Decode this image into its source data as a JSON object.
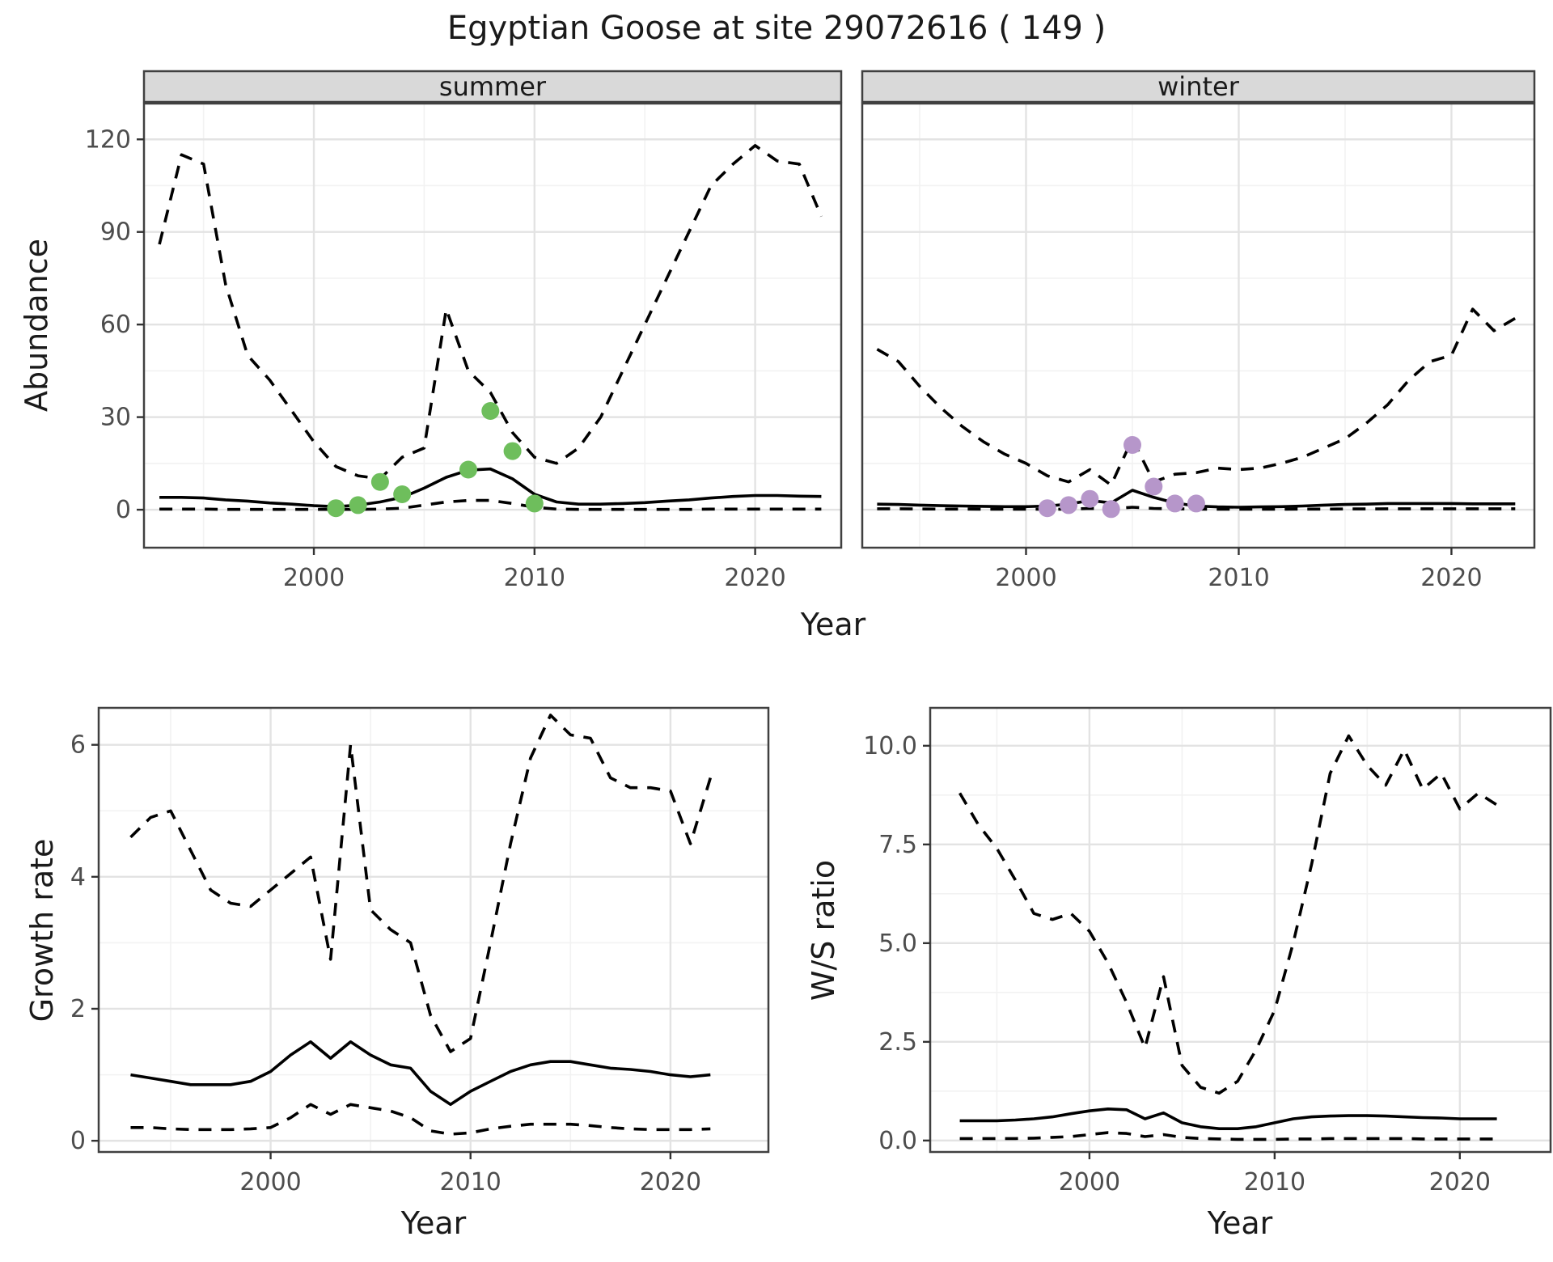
{
  "title": "Egyptian Goose at site 29072616 ( 149 )",
  "colors": {
    "line": "#000000",
    "grid_major": "#e3e3e3",
    "grid_minor": "#f2f2f2",
    "panel_border": "#404040",
    "strip_bg": "#d9d9d9",
    "tick_text": "#4d4d4d",
    "summer_point": "#6ebe5c",
    "winter_point": "#b696ca"
  },
  "chart_data": [
    {
      "id": "abundance_summer",
      "type": "line",
      "facet": "summer",
      "xlabel": "Year",
      "ylabel": "Abundance",
      "legend_position": "none",
      "grid": "on",
      "x": [
        1993,
        1994,
        1995,
        1996,
        1997,
        1998,
        1999,
        2000,
        2001,
        2002,
        2003,
        2004,
        2005,
        2006,
        2007,
        2008,
        2009,
        2010,
        2011,
        2012,
        2013,
        2014,
        2015,
        2016,
        2017,
        2018,
        2019,
        2020,
        2021,
        2022,
        2023
      ],
      "series": [
        {
          "name": "upper_ci",
          "style": "dashed",
          "values": [
            86,
            115,
            112,
            73,
            50,
            42,
            32,
            22,
            14,
            11,
            10,
            17,
            20,
            65,
            45,
            38,
            25,
            17,
            15,
            20,
            30,
            45,
            60,
            75,
            90,
            105,
            112,
            118,
            113,
            112,
            95
          ]
        },
        {
          "name": "mean",
          "style": "solid",
          "values": [
            4,
            4,
            3.8,
            3.2,
            2.8,
            2.2,
            1.8,
            1.3,
            1,
            1.5,
            2.5,
            4,
            7,
            10.5,
            12.8,
            13.2,
            10,
            5,
            2.5,
            1.8,
            1.8,
            2,
            2.3,
            2.8,
            3.2,
            3.8,
            4.3,
            4.6,
            4.6,
            4.4,
            4.3
          ]
        },
        {
          "name": "lower_ci",
          "style": "dashed",
          "values": [
            0.2,
            0.2,
            0.2,
            0.1,
            0.1,
            0.1,
            0.1,
            0.1,
            0.1,
            0.1,
            0.2,
            0.5,
            1.5,
            2.5,
            3,
            3,
            2,
            0.8,
            0.2,
            0.1,
            0.1,
            0.1,
            0.1,
            0.1,
            0.1,
            0.2,
            0.2,
            0.2,
            0.2,
            0.2,
            0.2
          ]
        }
      ],
      "points": {
        "name": "observed_counts",
        "color": "#6ebe5c",
        "data": [
          [
            2001,
            0.5
          ],
          [
            2002,
            1.5
          ],
          [
            2003,
            9
          ],
          [
            2004,
            5
          ],
          [
            2007,
            13
          ],
          [
            2008,
            32
          ],
          [
            2009,
            19
          ],
          [
            2010,
            2
          ]
        ]
      },
      "xticks": [
        2000,
        2010,
        2020
      ],
      "xminor": [
        1995,
        2005,
        2015
      ],
      "yticks": [
        0,
        30,
        60,
        90,
        120
      ],
      "yminor": [
        15,
        45,
        75,
        105
      ],
      "ytick_labels": [
        "0",
        "30",
        "60",
        "90",
        "120"
      ],
      "xlim": [
        1992.3,
        2023.9
      ],
      "ylim": [
        -12.3,
        131.6
      ]
    },
    {
      "id": "abundance_winter",
      "type": "line",
      "facet": "winter",
      "xlabel": "Year",
      "ylabel": "Abundance",
      "legend_position": "none",
      "grid": "on",
      "x": [
        1993,
        1994,
        1995,
        1996,
        1997,
        1998,
        1999,
        2000,
        2001,
        2002,
        2003,
        2004,
        2005,
        2006,
        2007,
        2008,
        2009,
        2010,
        2011,
        2012,
        2013,
        2014,
        2015,
        2016,
        2017,
        2018,
        2019,
        2020,
        2021,
        2022,
        2023
      ],
      "series": [
        {
          "name": "upper_ci",
          "style": "dashed",
          "values": [
            52,
            48,
            40,
            33,
            27,
            22,
            18,
            15,
            11,
            9,
            13,
            8,
            23,
            9,
            11.5,
            12,
            13.5,
            13,
            13.5,
            15,
            17,
            20,
            23,
            28,
            34,
            42,
            48,
            50,
            65,
            58,
            62
          ]
        },
        {
          "name": "mean",
          "style": "solid",
          "values": [
            1.8,
            1.7,
            1.5,
            1.3,
            1.2,
            1.1,
            1,
            1,
            1.2,
            1.8,
            3,
            2.2,
            6.3,
            4,
            2.2,
            1.2,
            0.9,
            0.8,
            0.9,
            1,
            1.2,
            1.5,
            1.7,
            1.8,
            2,
            2,
            2,
            2,
            1.9,
            1.9,
            1.9
          ]
        },
        {
          "name": "lower_ci",
          "style": "dashed",
          "values": [
            0.3,
            0.3,
            0.25,
            0.2,
            0.2,
            0.15,
            0.15,
            0.15,
            0.15,
            0.2,
            0.4,
            0.3,
            0.8,
            0.4,
            0.3,
            0.2,
            0.15,
            0.15,
            0.15,
            0.15,
            0.2,
            0.2,
            0.25,
            0.25,
            0.3,
            0.3,
            0.3,
            0.3,
            0.3,
            0.3,
            0.3
          ]
        }
      ],
      "points": {
        "name": "observed_counts",
        "color": "#b696ca",
        "data": [
          [
            2001,
            0.5
          ],
          [
            2002,
            1.5
          ],
          [
            2003,
            3.5
          ],
          [
            2004,
            0.2
          ],
          [
            2005,
            21
          ],
          [
            2006,
            7.5
          ],
          [
            2007,
            2
          ],
          [
            2008,
            2
          ]
        ]
      },
      "xticks": [
        2000,
        2010,
        2020
      ],
      "xminor": [
        1995,
        2005,
        2015
      ],
      "yticks": [
        0,
        30,
        60,
        90,
        120
      ],
      "yminor": [
        15,
        45,
        75,
        105
      ],
      "ytick_labels": [
        "0",
        "30",
        "60",
        "90",
        "120"
      ],
      "xlim": [
        1992.3,
        2023.9
      ],
      "ylim": [
        -12.3,
        131.6
      ]
    },
    {
      "id": "growth_rate",
      "type": "line",
      "facet": "",
      "xlabel": "Year",
      "ylabel": "Growth rate",
      "legend_position": "none",
      "grid": "on",
      "x": [
        1993,
        1994,
        1995,
        1996,
        1997,
        1998,
        1999,
        2000,
        2001,
        2002,
        2003,
        2004,
        2005,
        2006,
        2007,
        2008,
        2009,
        2010,
        2011,
        2012,
        2013,
        2014,
        2015,
        2016,
        2017,
        2018,
        2019,
        2020,
        2021,
        2022
      ],
      "series": [
        {
          "name": "upper_ci",
          "style": "dashed",
          "values": [
            4.6,
            4.9,
            5.0,
            4.4,
            3.8,
            3.6,
            3.55,
            3.8,
            4.05,
            4.3,
            2.75,
            6.0,
            3.5,
            3.2,
            3.0,
            1.9,
            1.35,
            1.55,
            3.0,
            4.5,
            5.8,
            6.45,
            6.15,
            6.1,
            5.5,
            5.35,
            5.35,
            5.3,
            4.5,
            5.5
          ]
        },
        {
          "name": "mean",
          "style": "solid",
          "values": [
            1.0,
            0.95,
            0.9,
            0.85,
            0.85,
            0.85,
            0.9,
            1.05,
            1.3,
            1.5,
            1.25,
            1.5,
            1.3,
            1.15,
            1.1,
            0.75,
            0.55,
            0.75,
            0.9,
            1.05,
            1.15,
            1.2,
            1.2,
            1.15,
            1.1,
            1.08,
            1.05,
            1.0,
            0.97,
            1.0
          ]
        },
        {
          "name": "lower_ci",
          "style": "dashed",
          "values": [
            0.2,
            0.2,
            0.18,
            0.17,
            0.17,
            0.17,
            0.18,
            0.2,
            0.35,
            0.55,
            0.4,
            0.55,
            0.5,
            0.45,
            0.35,
            0.15,
            0.1,
            0.12,
            0.18,
            0.22,
            0.25,
            0.25,
            0.25,
            0.23,
            0.2,
            0.18,
            0.17,
            0.17,
            0.17,
            0.18
          ]
        }
      ],
      "xticks": [
        2000,
        2010,
        2020
      ],
      "xminor": [
        1995,
        2005,
        2015
      ],
      "yticks": [
        0,
        2,
        4,
        6
      ],
      "yminor": [
        1,
        3,
        5
      ],
      "ytick_labels": [
        "0",
        "2",
        "4",
        "6"
      ],
      "xlim": [
        1991.4,
        2024.9
      ],
      "ylim": [
        -0.17,
        6.56
      ]
    },
    {
      "id": "ws_ratio",
      "type": "line",
      "facet": "",
      "xlabel": "Year",
      "ylabel": "W/S ratio",
      "legend_position": "none",
      "grid": "on",
      "x": [
        1993,
        1994,
        1995,
        1996,
        1997,
        1998,
        1999,
        2000,
        2001,
        2002,
        2003,
        2004,
        2005,
        2006,
        2007,
        2008,
        2009,
        2010,
        2011,
        2012,
        2013,
        2014,
        2015,
        2016,
        2017,
        2018,
        2019,
        2020,
        2021,
        2022
      ],
      "series": [
        {
          "name": "upper_ci",
          "style": "dashed",
          "values": [
            8.8,
            8.0,
            7.4,
            6.6,
            5.75,
            5.6,
            5.75,
            5.3,
            4.5,
            3.5,
            2.35,
            4.15,
            1.9,
            1.35,
            1.2,
            1.5,
            2.3,
            3.3,
            5.0,
            7.0,
            9.3,
            10.25,
            9.5,
            9.0,
            9.9,
            8.9,
            9.3,
            8.4,
            8.8,
            8.5
          ]
        },
        {
          "name": "mean",
          "style": "solid",
          "values": [
            0.5,
            0.5,
            0.5,
            0.52,
            0.55,
            0.6,
            0.68,
            0.75,
            0.8,
            0.78,
            0.55,
            0.7,
            0.45,
            0.35,
            0.3,
            0.3,
            0.35,
            0.45,
            0.55,
            0.6,
            0.62,
            0.63,
            0.63,
            0.62,
            0.6,
            0.58,
            0.57,
            0.55,
            0.55,
            0.55
          ]
        },
        {
          "name": "lower_ci",
          "style": "dashed",
          "values": [
            0.05,
            0.05,
            0.05,
            0.05,
            0.06,
            0.08,
            0.1,
            0.15,
            0.2,
            0.18,
            0.1,
            0.15,
            0.08,
            0.05,
            0.04,
            0.03,
            0.03,
            0.03,
            0.04,
            0.04,
            0.05,
            0.05,
            0.05,
            0.05,
            0.05,
            0.04,
            0.04,
            0.04,
            0.04,
            0.04
          ]
        }
      ],
      "xticks": [
        2000,
        2010,
        2020
      ],
      "xminor": [
        1995,
        2005,
        2015
      ],
      "yticks": [
        0,
        2.5,
        5,
        7.5,
        10
      ],
      "yminor": [
        1.25,
        3.75,
        6.25,
        8.75
      ],
      "ytick_labels": [
        "0.0",
        "2.5",
        "5.0",
        "7.5",
        "10.0"
      ],
      "xlim": [
        1991.4,
        2024.9
      ],
      "ylim": [
        -0.29,
        10.96
      ]
    }
  ]
}
